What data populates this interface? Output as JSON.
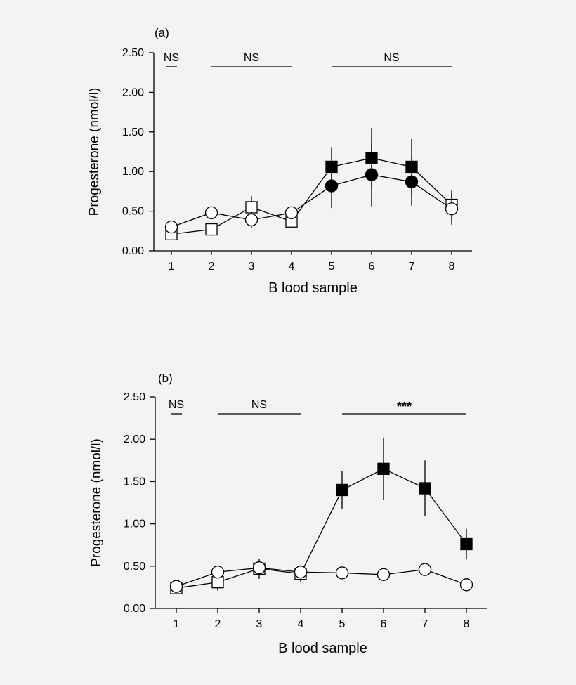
{
  "chart_data": [
    {
      "type": "line",
      "panel_label": "(a)",
      "xlabel": "B lood sample",
      "ylabel": "Progesterone (nmol/l)",
      "x": [
        1,
        2,
        3,
        4,
        5,
        6,
        7,
        8
      ],
      "ylim": [
        0,
        2.5
      ],
      "yticks": [
        "0.00",
        "0.50",
        "1.00",
        "1.50",
        "2.00",
        "2.50"
      ],
      "grid": false,
      "series": [
        {
          "marker": "square",
          "filled": [
            false,
            false,
            false,
            false,
            true,
            true,
            true,
            false
          ],
          "values": [
            0.21,
            0.27,
            0.55,
            0.37,
            1.06,
            1.17,
            1.06,
            0.58
          ],
          "error": [
            0,
            0.08,
            0.14,
            0,
            0.25,
            0.38,
            0.35,
            0.18
          ]
        },
        {
          "marker": "circle",
          "filled": [
            false,
            false,
            false,
            false,
            true,
            true,
            true,
            false
          ],
          "values": [
            0.3,
            0.48,
            0.39,
            0.48,
            0.82,
            0.96,
            0.87,
            0.53
          ],
          "error": [
            0,
            0,
            0.1,
            0,
            0.28,
            0.4,
            0.3,
            0.2
          ]
        }
      ],
      "significance": [
        {
          "label": "NS",
          "from": 1,
          "to": 1
        },
        {
          "label": "NS",
          "from": 2,
          "to": 4
        },
        {
          "label": "NS",
          "from": 5,
          "to": 8
        }
      ]
    },
    {
      "type": "line",
      "panel_label": "(b)",
      "xlabel": "B lood sample",
      "ylabel": "Progesterone (nmol/l)",
      "x": [
        1,
        2,
        3,
        4,
        5,
        6,
        7,
        8
      ],
      "ylim": [
        0,
        2.5
      ],
      "yticks": [
        "0.00",
        "0.50",
        "1.00",
        "1.50",
        "2.00",
        "2.50"
      ],
      "grid": false,
      "series": [
        {
          "marker": "square",
          "filled": [
            false,
            false,
            false,
            false,
            true,
            true,
            true,
            true
          ],
          "values": [
            0.24,
            0.31,
            0.47,
            0.41,
            1.4,
            1.65,
            1.42,
            0.76
          ],
          "error": [
            0,
            0.1,
            0.12,
            0.1,
            0.22,
            0.37,
            0.33,
            0.18
          ]
        },
        {
          "marker": "circle",
          "filled": [
            false,
            false,
            false,
            false,
            false,
            false,
            false,
            false
          ],
          "values": [
            0.26,
            0.43,
            0.48,
            0.43,
            0.42,
            0.4,
            0.46,
            0.28
          ],
          "error": [
            0,
            0,
            0,
            0,
            0,
            0,
            0,
            0
          ]
        }
      ],
      "significance": [
        {
          "label": "NS",
          "from": 1,
          "to": 1
        },
        {
          "label": "NS",
          "from": 2,
          "to": 4
        },
        {
          "label": "***",
          "from": 5,
          "to": 8
        }
      ]
    }
  ]
}
